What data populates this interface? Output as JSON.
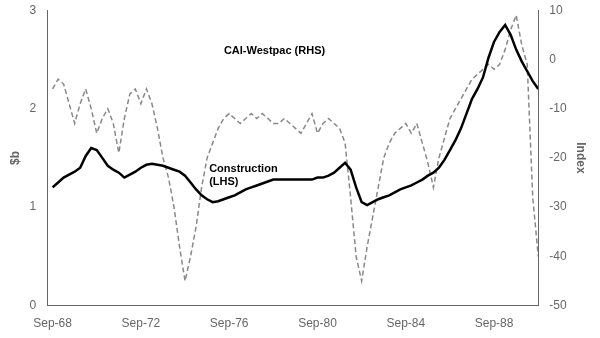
{
  "chart_data": {
    "type": "line",
    "ylabel": "$b",
    "y2label": "Index",
    "x": [
      1968.75,
      1969.0,
      1969.25,
      1969.5,
      1969.75,
      1970.0,
      1970.25,
      1970.5,
      1970.75,
      1971.0,
      1971.25,
      1971.5,
      1971.75,
      1972.0,
      1972.25,
      1972.5,
      1972.75,
      1973.0,
      1973.25,
      1973.5,
      1973.75,
      1974.0,
      1974.25,
      1974.5,
      1974.75,
      1975.0,
      1975.25,
      1975.5,
      1975.75,
      1976.0,
      1976.25,
      1976.5,
      1976.75,
      1977.0,
      1977.25,
      1977.5,
      1977.75,
      1978.0,
      1978.25,
      1978.5,
      1978.75,
      1979.0,
      1979.25,
      1979.5,
      1979.75,
      1980.0,
      1980.25,
      1980.5,
      1980.75,
      1981.0,
      1981.25,
      1981.5,
      1981.75,
      1982.0,
      1982.25,
      1982.5,
      1982.75,
      1983.0,
      1983.25,
      1983.5,
      1983.75,
      1984.0,
      1984.25,
      1984.5,
      1984.75,
      1985.0,
      1985.25,
      1985.5,
      1985.75,
      1986.0,
      1986.25,
      1986.5,
      1986.75,
      1987.0,
      1987.25,
      1987.5,
      1987.75,
      1988.0,
      1988.25,
      1988.5,
      1988.75,
      1989.0,
      1989.25,
      1989.5,
      1989.75,
      1990.0,
      1990.25,
      1990.5,
      1990.75
    ],
    "series": [
      {
        "name": "Construction\n(LHS)",
        "color": "#000000",
        "line_style": "solid",
        "values": [
          1.2,
          1.25,
          1.3,
          1.33,
          1.36,
          1.4,
          1.52,
          1.6,
          1.58,
          1.5,
          1.42,
          1.38,
          1.35,
          1.3,
          1.33,
          1.36,
          1.4,
          1.43,
          1.44,
          1.43,
          1.42,
          1.4,
          1.38,
          1.36,
          1.32,
          1.25,
          1.18,
          1.12,
          1.08,
          1.05,
          1.06,
          1.08,
          1.1,
          1.12,
          1.15,
          1.18,
          1.2,
          1.22,
          1.24,
          1.26,
          1.28,
          1.28,
          1.28,
          1.28,
          1.28,
          1.28,
          1.28,
          1.28,
          1.3,
          1.3,
          1.32,
          1.35,
          1.4,
          1.45,
          1.38,
          1.2,
          1.05,
          1.02,
          1.05,
          1.08,
          1.1,
          1.12,
          1.15,
          1.18,
          1.2,
          1.22,
          1.25,
          1.28,
          1.32,
          1.35,
          1.4,
          1.48,
          1.58,
          1.68,
          1.8,
          1.95,
          2.1,
          2.2,
          2.32,
          2.52,
          2.68,
          2.78,
          2.85,
          2.75,
          2.6,
          2.48,
          2.38,
          2.28,
          2.2
        ]
      },
      {
        "name": "CAI-Westpac (RHS)",
        "color": "#888888",
        "line_style": "dashed",
        "axis": "y2",
        "values": [
          -6,
          -4,
          -5,
          -9,
          -13,
          -9,
          -6,
          -10,
          -15,
          -12,
          -10,
          -13,
          -19,
          -12,
          -7,
          -6,
          -9,
          -6,
          -9,
          -14,
          -20,
          -24,
          -30,
          -38,
          -45,
          -40,
          -34,
          -26,
          -20,
          -17,
          -14,
          -12,
          -11,
          -12,
          -13,
          -12,
          -11,
          -12,
          -11,
          -12,
          -13,
          -13,
          -12,
          -13,
          -14,
          -15,
          -13,
          -11,
          -15,
          -13,
          -12,
          -13,
          -14,
          -17,
          -28,
          -40,
          -45,
          -38,
          -32,
          -26,
          -20,
          -17,
          -15,
          -14,
          -13,
          -15,
          -13,
          -17,
          -21,
          -26,
          -20,
          -16,
          -12,
          -10,
          -8,
          -6,
          -4,
          -3,
          -2,
          -1,
          -2,
          -1,
          2,
          6,
          9,
          3,
          -1,
          -28,
          -40
        ]
      }
    ],
    "xlim": [
      1968.5,
      1990.75
    ],
    "xticks": [
      {
        "value": 1968.75,
        "label": "Sep-68"
      },
      {
        "value": 1972.75,
        "label": "Sep-72"
      },
      {
        "value": 1976.75,
        "label": "Sep-76"
      },
      {
        "value": 1980.75,
        "label": "Sep-80"
      },
      {
        "value": 1984.75,
        "label": "Sep-84"
      },
      {
        "value": 1988.75,
        "label": "Sep-88"
      }
    ],
    "ylim": [
      0,
      3
    ],
    "yticks": [
      0,
      1,
      2,
      3
    ],
    "y2lim": [
      -50,
      10
    ],
    "y2ticks": [
      -50,
      -40,
      -30,
      -20,
      -10,
      0,
      10
    ],
    "grid": false,
    "legend": false
  }
}
